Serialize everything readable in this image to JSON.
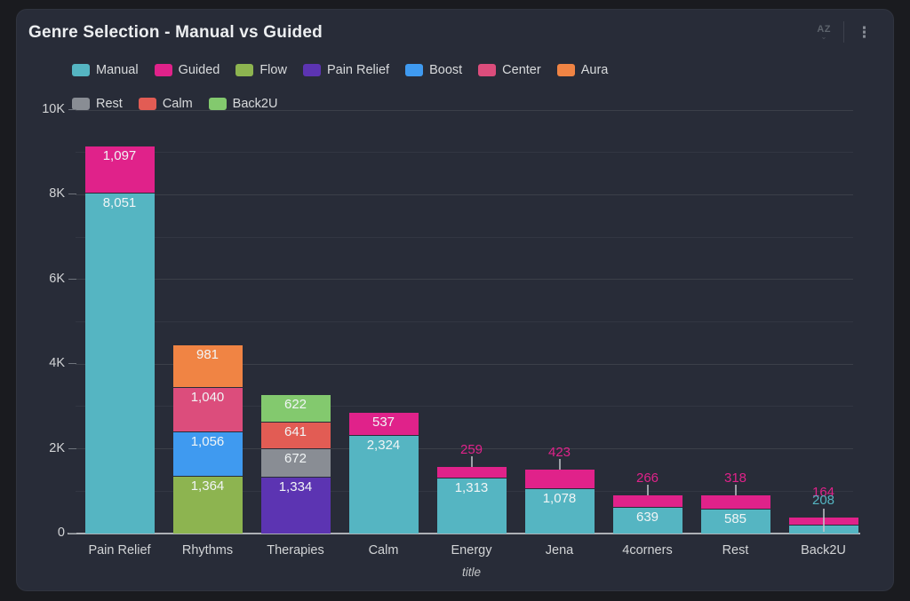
{
  "panel": {
    "title": "Genre Selection - Manual vs Guided"
  },
  "icons": {
    "sort_az": "AZ",
    "sort_caret": "⌄",
    "kebab": "⋮"
  },
  "chart_data": {
    "type": "bar",
    "stacked": true,
    "title": "Genre Selection - Manual vs Guided",
    "xlabel": "title",
    "ylabel": "",
    "ylim": [
      0,
      10000
    ],
    "grid": true,
    "legend_position": "top",
    "yticks": [
      {
        "value": 0,
        "label": "0"
      },
      {
        "value": 2000,
        "label": "2K"
      },
      {
        "value": 4000,
        "label": "4K"
      },
      {
        "value": 6000,
        "label": "6K"
      },
      {
        "value": 8000,
        "label": "8K"
      },
      {
        "value": 10000,
        "label": "10K"
      }
    ],
    "legend": [
      {
        "name": "Manual",
        "color": "#55b5c2"
      },
      {
        "name": "Guided",
        "color": "#e0228a"
      },
      {
        "name": "Flow",
        "color": "#8db450"
      },
      {
        "name": "Pain Relief",
        "color": "#5c34b2"
      },
      {
        "name": "Boost",
        "color": "#3f9af0"
      },
      {
        "name": "Center",
        "color": "#dc4d7c"
      },
      {
        "name": "Aura",
        "color": "#f08444"
      },
      {
        "name": "Rest",
        "color": "#898d94"
      },
      {
        "name": "Calm",
        "color": "#e25c54"
      },
      {
        "name": "Back2U",
        "color": "#83c96e"
      }
    ],
    "categories": [
      "Pain Relief",
      "Rhythms",
      "Therapies",
      "Calm",
      "Energy",
      "Jena",
      "4corners",
      "Rest",
      "Back2U"
    ],
    "bars": [
      {
        "category": "Pain Relief",
        "segments": [
          {
            "series": "Manual",
            "value": 8051,
            "label": "8,051",
            "placement": "inside"
          },
          {
            "series": "Guided",
            "value": 1097,
            "label": "1,097",
            "placement": "inside"
          }
        ]
      },
      {
        "category": "Rhythms",
        "segments": [
          {
            "series": "Flow",
            "value": 1364,
            "label": "1,364",
            "placement": "inside"
          },
          {
            "series": "Boost",
            "value": 1056,
            "label": "1,056",
            "placement": "inside"
          },
          {
            "series": "Center",
            "value": 1040,
            "label": "1,040",
            "placement": "inside"
          },
          {
            "series": "Aura",
            "value": 981,
            "label": "981",
            "placement": "inside"
          }
        ]
      },
      {
        "category": "Therapies",
        "segments": [
          {
            "series": "Pain Relief",
            "value": 1334,
            "label": "1,334",
            "placement": "inside"
          },
          {
            "series": "Rest",
            "value": 672,
            "label": "672",
            "placement": "inside"
          },
          {
            "series": "Calm",
            "value": 641,
            "label": "641",
            "placement": "inside"
          },
          {
            "series": "Back2U",
            "value": 622,
            "label": "622",
            "placement": "inside"
          }
        ]
      },
      {
        "category": "Calm",
        "segments": [
          {
            "series": "Manual",
            "value": 2324,
            "label": "2,324",
            "placement": "inside"
          },
          {
            "series": "Guided",
            "value": 537,
            "label": "537",
            "placement": "inside"
          }
        ]
      },
      {
        "category": "Energy",
        "segments": [
          {
            "series": "Manual",
            "value": 1313,
            "label": "1,313",
            "placement": "inside"
          },
          {
            "series": "Guided",
            "value": 259,
            "label": "259",
            "placement": "above"
          }
        ]
      },
      {
        "category": "Jena",
        "segments": [
          {
            "series": "Manual",
            "value": 1078,
            "label": "1,078",
            "placement": "inside"
          },
          {
            "series": "Guided",
            "value": 423,
            "label": "423",
            "placement": "above"
          }
        ]
      },
      {
        "category": "4corners",
        "segments": [
          {
            "series": "Manual",
            "value": 639,
            "label": "639",
            "placement": "inside"
          },
          {
            "series": "Guided",
            "value": 266,
            "label": "266",
            "placement": "above"
          }
        ]
      },
      {
        "category": "Rest",
        "segments": [
          {
            "series": "Manual",
            "value": 585,
            "label": "585",
            "placement": "inside"
          },
          {
            "series": "Guided",
            "value": 318,
            "label": "318",
            "placement": "above"
          }
        ]
      },
      {
        "category": "Back2U",
        "label_line_to_bottom": true,
        "segments": [
          {
            "series": "Manual",
            "value": 208,
            "label": "208",
            "placement": "above"
          },
          {
            "series": "Guided",
            "value": 164,
            "label": "164",
            "placement": "above"
          }
        ]
      }
    ]
  }
}
